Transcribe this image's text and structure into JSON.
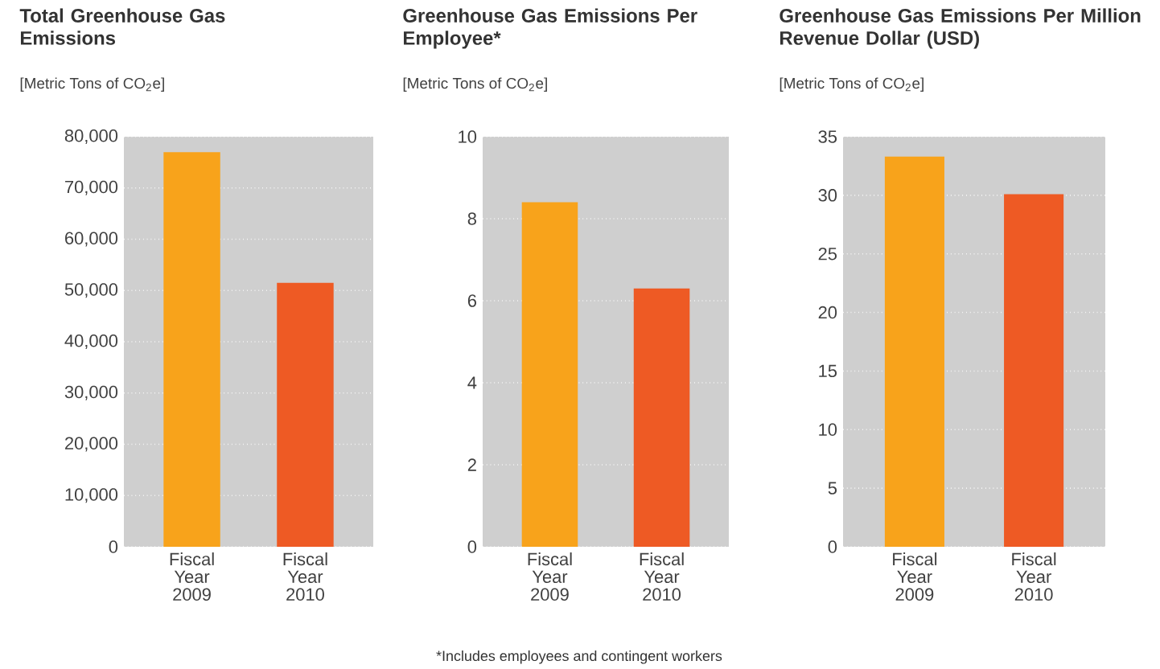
{
  "chart_data": [
    {
      "type": "bar",
      "title": "Total Greenhouse Gas Emissions",
      "subtitle": "[Metric Tons of CO$_{2}$e]",
      "categories": [
        "Fiscal Year 2009",
        "Fiscal Year 2010"
      ],
      "values": [
        77000,
        51500
      ],
      "colors": [
        "#f8a31b",
        "#ee5a24"
      ],
      "ylim": [
        0,
        80000
      ],
      "yticks": [
        {
          "value": 0,
          "label": "0"
        },
        {
          "value": 10000,
          "label": "10,000"
        },
        {
          "value": 20000,
          "label": "20,000"
        },
        {
          "value": 30000,
          "label": "30,000"
        },
        {
          "value": 40000,
          "label": "40,000"
        },
        {
          "value": 50000,
          "label": "50,000"
        },
        {
          "value": 60000,
          "label": "60,000"
        },
        {
          "value": 70000,
          "label": "70,000"
        },
        {
          "value": 80000,
          "label": "80,000"
        }
      ],
      "grid": "y"
    },
    {
      "type": "bar",
      "title": "Greenhouse Gas Emissions Per Employee*",
      "subtitle": "[Metric Tons of CO$_{2}$e]",
      "categories": [
        "Fiscal Year 2009",
        "Fiscal Year 2010"
      ],
      "values": [
        8.4,
        6.3
      ],
      "colors": [
        "#f8a31b",
        "#ee5a24"
      ],
      "ylim": [
        0,
        10
      ],
      "yticks": [
        0,
        2,
        4,
        6,
        8,
        10
      ],
      "grid": "y",
      "annotations": [
        "*Includes employees and contingent workers"
      ]
    },
    {
      "type": "bar",
      "title": "Greenhouse Gas Emissions Per Million Revenue Dollar (USD)",
      "subtitle": "[Metric Tons of CO$_{2}$e]",
      "categories": [
        "Fiscal Year 2009",
        "Fiscal Year 2010"
      ],
      "values": [
        33.3,
        30.1
      ],
      "colors": [
        "#f8a31b",
        "#ee5a24"
      ],
      "ylim": [
        0,
        35
      ],
      "yticks": [
        0,
        5,
        10,
        15,
        20,
        25,
        30,
        35
      ],
      "grid": "y"
    }
  ]
}
